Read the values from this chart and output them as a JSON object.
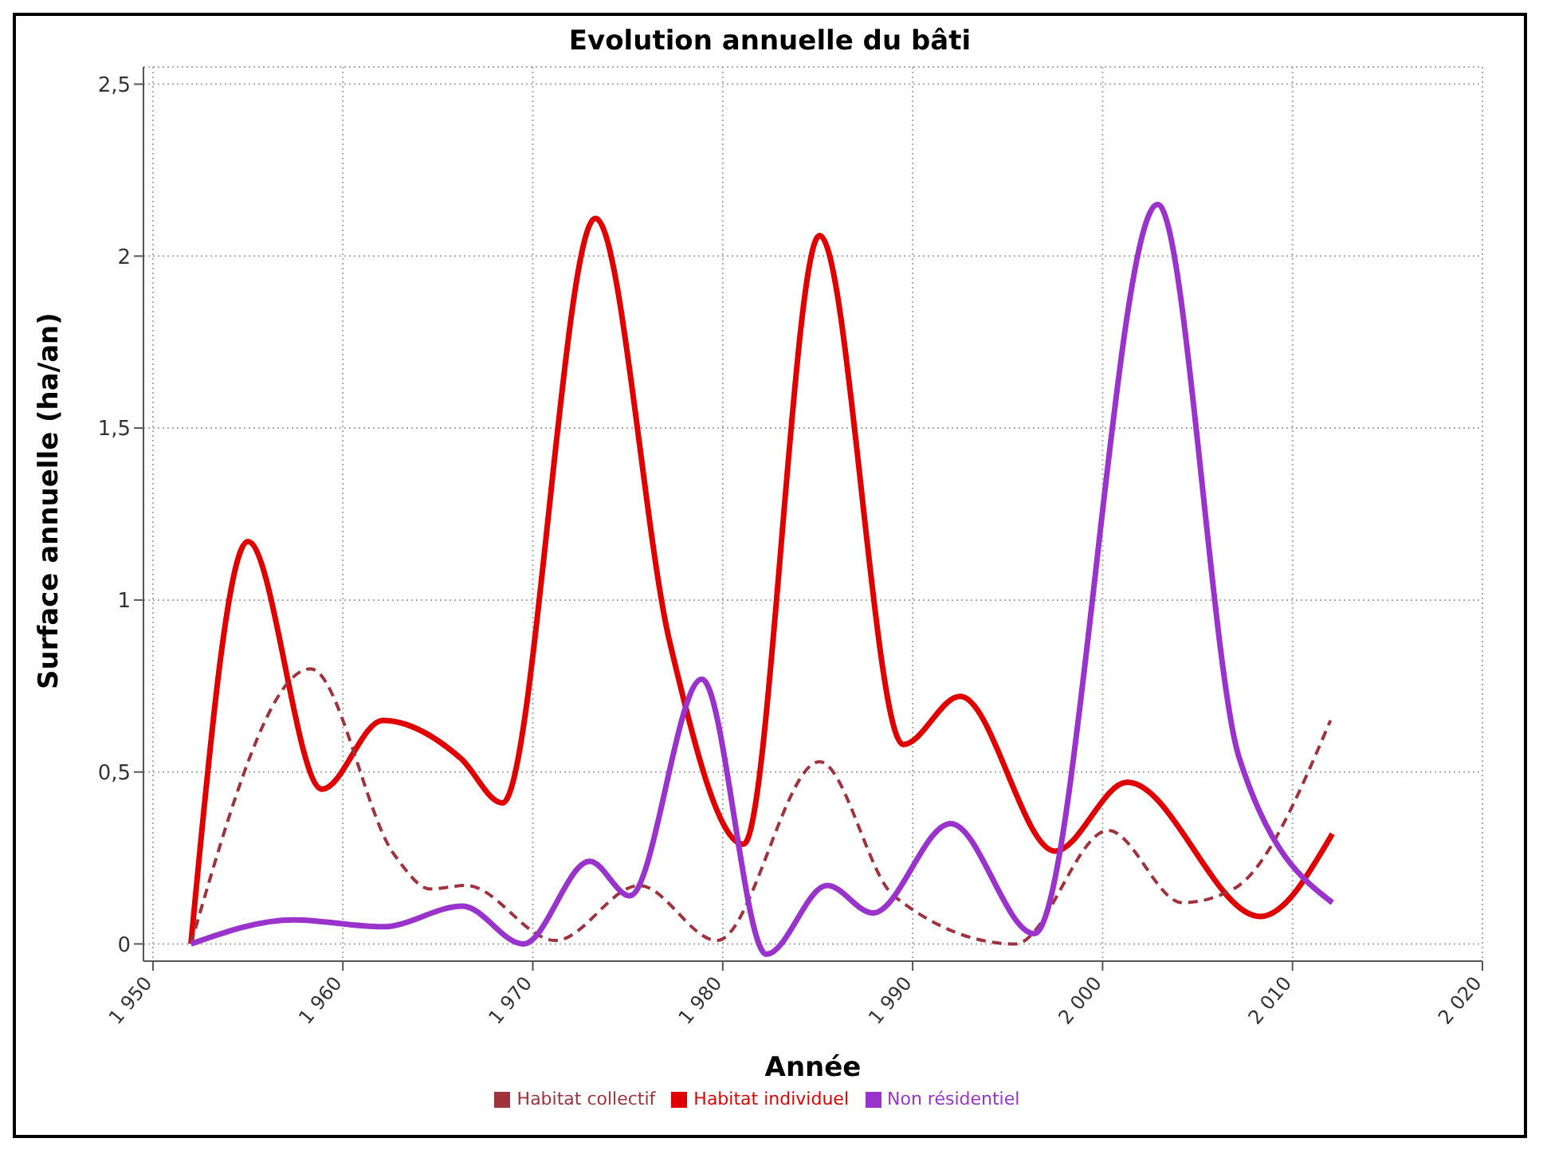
{
  "chart_data": {
    "type": "line",
    "title": "Evolution annuelle du bâti",
    "xlabel": "Année",
    "ylabel": "Surface annuelle (ha/an)",
    "xlim": [
      1949.5,
      2020
    ],
    "xticks": [
      {
        "value": 1950,
        "label": "1 950"
      },
      {
        "value": 1960,
        "label": "1 960"
      },
      {
        "value": 1970,
        "label": "1 970"
      },
      {
        "value": 1980,
        "label": "1 980"
      },
      {
        "value": 1990,
        "label": "1 990"
      },
      {
        "value": 2000,
        "label": "2 000"
      },
      {
        "value": 2010,
        "label": "2 010"
      },
      {
        "value": 2020,
        "label": "2 020"
      }
    ],
    "ylim": [
      -0.05,
      2.55
    ],
    "yticks": [
      0,
      {
        "value": 0.5,
        "label": "0,5"
      },
      1,
      {
        "value": 1.5,
        "label": "1,5"
      },
      2,
      {
        "value": 2.5,
        "label": "2,5"
      }
    ],
    "grid": true,
    "legend": "bottom",
    "marker": "none",
    "series": [
      {
        "name": "Habitat individuel",
        "color": "#e00000",
        "line_style": "solid",
        "x": [
          1952,
          1955,
          1958.9,
          1962.1,
          1966.2,
          1968.4,
          1973.3,
          1977.2,
          1981.1,
          1985.1,
          1989.5,
          1992.5,
          1997.5,
          2001.3,
          2008.3,
          2012.1
        ],
        "values": [
          0,
          1.17,
          0.45,
          0.65,
          0.54,
          0.41,
          2.11,
          0.88,
          0.29,
          2.06,
          0.58,
          0.72,
          0.27,
          0.47,
          0.08,
          0.32
        ]
      },
      {
        "name": "Habitat collectif",
        "color": "#a0323c",
        "line_style": "dashed",
        "x": [
          1952,
          1958.3,
          1962.7,
          1964.6,
          1966.5,
          1971.2,
          1975.6,
          1979.7,
          1985.1,
          1989,
          1995.4,
          2000.3,
          2004.2,
          2006.9,
          2012
        ],
        "values": [
          0,
          0.8,
          0.26,
          0.16,
          0.17,
          0.01,
          0.17,
          0.01,
          0.53,
          0.14,
          0,
          0.33,
          0.12,
          0.16,
          0.65
        ]
      },
      {
        "name": "Non résidentiel",
        "color": "#9933cc",
        "line_style": "solid",
        "x": [
          1952,
          1957.4,
          1962.1,
          1966.3,
          1969.5,
          1973,
          1975.1,
          1978.9,
          1982.3,
          1985.5,
          1987.9,
          1992,
          1996.4,
          2002.9,
          2007.2,
          2012.1
        ],
        "values": [
          0,
          0.07,
          0.05,
          0.11,
          0,
          0.24,
          0.14,
          0.77,
          -0.03,
          0.17,
          0.09,
          0.35,
          0.03,
          2.15,
          0.54,
          0.12
        ]
      }
    ]
  }
}
